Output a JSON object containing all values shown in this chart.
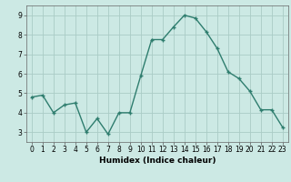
{
  "x": [
    0,
    1,
    2,
    3,
    4,
    5,
    6,
    7,
    8,
    9,
    10,
    11,
    12,
    13,
    14,
    15,
    16,
    17,
    18,
    19,
    20,
    21,
    22,
    23
  ],
  "y": [
    4.8,
    4.9,
    4.0,
    4.4,
    4.5,
    3.0,
    3.7,
    2.9,
    4.0,
    4.0,
    5.9,
    7.75,
    7.75,
    8.4,
    9.0,
    8.85,
    8.15,
    7.3,
    6.1,
    5.75,
    5.1,
    4.15,
    4.15,
    3.25
  ],
  "line_color": "#2e7d6e",
  "marker": "+",
  "marker_size": 3,
  "line_width": 1.0,
  "xlabel": "Humidex (Indice chaleur)",
  "bg_color": "#cce9e4",
  "grid_color": "#aaccc6",
  "xlim": [
    -0.5,
    23.5
  ],
  "ylim": [
    2.5,
    9.5
  ],
  "xticks": [
    0,
    1,
    2,
    3,
    4,
    5,
    6,
    7,
    8,
    9,
    10,
    11,
    12,
    13,
    14,
    15,
    16,
    17,
    18,
    19,
    20,
    21,
    22,
    23
  ],
  "yticks": [
    3,
    4,
    5,
    6,
    7,
    8,
    9
  ],
  "xlabel_fontsize": 6.5,
  "tick_fontsize": 5.5
}
